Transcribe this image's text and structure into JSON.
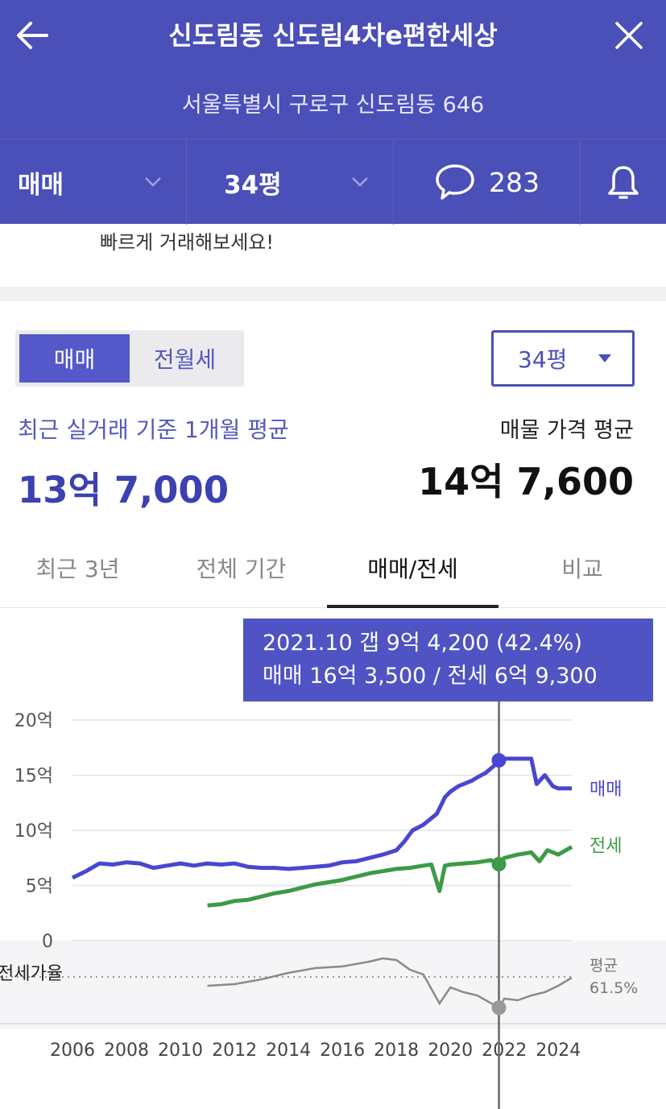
{
  "header": {
    "title": "신도림동 신도림4차e편한세상",
    "address": "서울특별시 구로구 신도림동 646"
  },
  "subbar": {
    "trade_type": "매매",
    "size": "34평",
    "comment_count": "283"
  },
  "banner": {
    "text": "빠르게 거래해보세요!"
  },
  "toggle": {
    "sale": "매매",
    "rent": "전월세"
  },
  "size_select": {
    "value": "34평"
  },
  "summary": {
    "recent_label": "최근 실거래 기준 1개월 평균",
    "recent_price": "13억 7,000",
    "listing_label": "매물 가격 평균",
    "listing_price": "14억 7,600"
  },
  "tabs": [
    {
      "label": "최근 3년"
    },
    {
      "label": "전체 기간"
    },
    {
      "label": "매매/전세"
    },
    {
      "label": "비교"
    }
  ],
  "tooltip": {
    "line1": "2021.10  갭 9억 4,200 (42.4%)",
    "line2": "매매 16억 3,500 / 전세 6억 9,300"
  },
  "colors": {
    "header": "#4b4fb8",
    "sale_line": "#4a46d0",
    "rent_line": "#3d9a46",
    "ratio_line": "#8a8a8a"
  },
  "chart_data": {
    "type": "line",
    "y_ticks": [
      {
        "value": 20,
        "label": "20억"
      },
      {
        "value": 15,
        "label": "15억"
      },
      {
        "value": 10,
        "label": "10억"
      },
      {
        "value": 5,
        "label": "5억"
      },
      {
        "value": 0,
        "label": "0"
      }
    ],
    "x_ticks": [
      2006,
      2008,
      2010,
      2012,
      2014,
      2016,
      2018,
      2020,
      2022,
      2024
    ],
    "xlim": [
      2006,
      2024.5
    ],
    "ylim": [
      0,
      20
    ],
    "cursor_x": 2021.8,
    "series": [
      {
        "name": "매매",
        "points": [
          [
            2006,
            5.7
          ],
          [
            2006.5,
            6.3
          ],
          [
            2007,
            7.0
          ],
          [
            2007.5,
            6.9
          ],
          [
            2008,
            7.1
          ],
          [
            2008.5,
            7.0
          ],
          [
            2009,
            6.6
          ],
          [
            2009.5,
            6.8
          ],
          [
            2010,
            7.0
          ],
          [
            2010.5,
            6.8
          ],
          [
            2011,
            7.0
          ],
          [
            2011.5,
            6.9
          ],
          [
            2012,
            7.0
          ],
          [
            2012.5,
            6.7
          ],
          [
            2013,
            6.6
          ],
          [
            2013.5,
            6.6
          ],
          [
            2014,
            6.5
          ],
          [
            2014.5,
            6.6
          ],
          [
            2015,
            6.7
          ],
          [
            2015.5,
            6.8
          ],
          [
            2016,
            7.1
          ],
          [
            2016.5,
            7.2
          ],
          [
            2017,
            7.5
          ],
          [
            2017.5,
            7.8
          ],
          [
            2018,
            8.2
          ],
          [
            2018.3,
            9.0
          ],
          [
            2018.6,
            10.0
          ],
          [
            2019,
            10.5
          ],
          [
            2019.5,
            11.5
          ],
          [
            2019.8,
            13.0
          ],
          [
            2020,
            13.5
          ],
          [
            2020.3,
            14.0
          ],
          [
            2020.8,
            14.5
          ],
          [
            2021,
            14.8
          ],
          [
            2021.3,
            15.2
          ],
          [
            2021.6,
            15.8
          ],
          [
            2021.8,
            16.35
          ],
          [
            2022,
            16.5
          ],
          [
            2022.5,
            16.5
          ],
          [
            2023,
            16.5
          ],
          [
            2023.2,
            14.2
          ],
          [
            2023.5,
            15.0
          ],
          [
            2023.8,
            14.0
          ],
          [
            2024,
            13.8
          ],
          [
            2024.5,
            13.8
          ]
        ]
      },
      {
        "name": "전세",
        "points": [
          [
            2011,
            3.2
          ],
          [
            2011.5,
            3.3
          ],
          [
            2012,
            3.6
          ],
          [
            2012.5,
            3.7
          ],
          [
            2013,
            4.0
          ],
          [
            2013.5,
            4.3
          ],
          [
            2014,
            4.5
          ],
          [
            2014.5,
            4.8
          ],
          [
            2015,
            5.1
          ],
          [
            2015.5,
            5.3
          ],
          [
            2016,
            5.5
          ],
          [
            2016.5,
            5.8
          ],
          [
            2017,
            6.1
          ],
          [
            2017.5,
            6.3
          ],
          [
            2018,
            6.5
          ],
          [
            2018.5,
            6.6
          ],
          [
            2019,
            6.8
          ],
          [
            2019.3,
            6.9
          ],
          [
            2019.6,
            4.5
          ],
          [
            2019.8,
            6.8
          ],
          [
            2020,
            6.9
          ],
          [
            2020.5,
            7.0
          ],
          [
            2021,
            7.1
          ],
          [
            2021.5,
            7.3
          ],
          [
            2021.8,
            6.93
          ],
          [
            2022,
            7.5
          ],
          [
            2022.5,
            7.8
          ],
          [
            2023,
            8.0
          ],
          [
            2023.3,
            7.2
          ],
          [
            2023.6,
            8.2
          ],
          [
            2024,
            7.8
          ],
          [
            2024.5,
            8.5
          ]
        ]
      },
      {
        "name": "전세가율",
        "avg_label": "평균",
        "avg_value": "61.5%",
        "points": [
          [
            2011,
            56
          ],
          [
            2012,
            57
          ],
          [
            2013,
            60
          ],
          [
            2014,
            64
          ],
          [
            2015,
            67
          ],
          [
            2016,
            68
          ],
          [
            2017,
            71
          ],
          [
            2017.5,
            73
          ],
          [
            2018,
            72
          ],
          [
            2018.5,
            66
          ],
          [
            2019,
            63
          ],
          [
            2019.6,
            45
          ],
          [
            2020,
            55
          ],
          [
            2020.5,
            52
          ],
          [
            2021,
            50
          ],
          [
            2021.8,
            42.4
          ],
          [
            2022,
            48
          ],
          [
            2022.5,
            47
          ],
          [
            2023,
            50
          ],
          [
            2023.5,
            52
          ],
          [
            2024,
            56
          ],
          [
            2024.5,
            61
          ]
        ]
      }
    ]
  }
}
